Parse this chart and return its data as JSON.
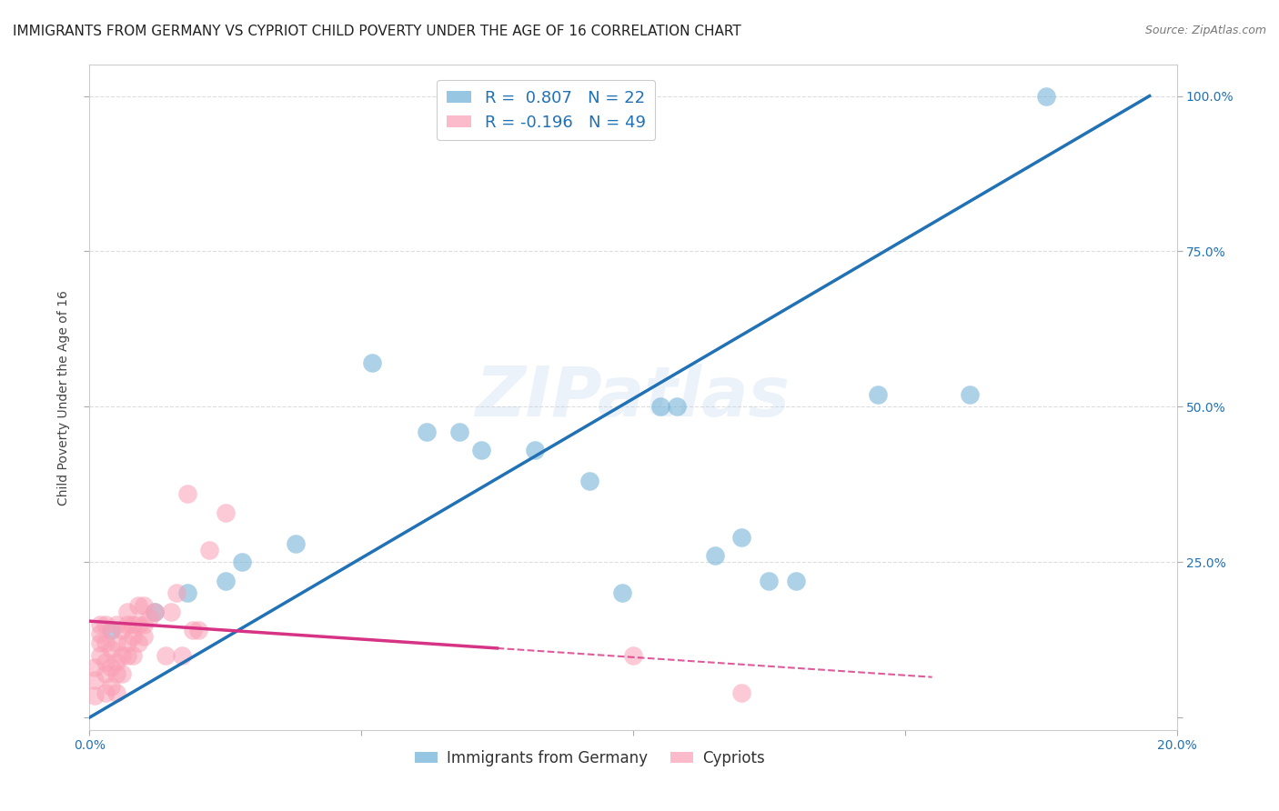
{
  "title": "IMMIGRANTS FROM GERMANY VS CYPRIOT CHILD POVERTY UNDER THE AGE OF 16 CORRELATION CHART",
  "source": "Source: ZipAtlas.com",
  "ylabel": "Child Poverty Under the Age of 16",
  "ytick_labels": [
    "",
    "25.0%",
    "50.0%",
    "75.0%",
    "100.0%"
  ],
  "ytick_vals": [
    0.0,
    0.25,
    0.5,
    0.75,
    1.0
  ],
  "xtick_vals": [
    0.0,
    0.05,
    0.1,
    0.15,
    0.2
  ],
  "xtick_labels": [
    "0.0%",
    "",
    "",
    "",
    "20.0%"
  ],
  "xlim": [
    0.0,
    0.2
  ],
  "ylim": [
    -0.02,
    1.05
  ],
  "blue_color": "#6baed6",
  "pink_color": "#fa9fb5",
  "blue_line_color": "#2171b5",
  "pink_line_color": "#d63384",
  "R_blue": 0.807,
  "N_blue": 22,
  "R_pink": -0.196,
  "N_pink": 49,
  "legend_label_blue": "Immigrants from Germany",
  "legend_label_pink": "Cypriots",
  "watermark": "ZIPatlas",
  "blue_scatter_x": [
    0.004,
    0.012,
    0.018,
    0.025,
    0.028,
    0.038,
    0.052,
    0.062,
    0.068,
    0.072,
    0.082,
    0.092,
    0.098,
    0.105,
    0.108,
    0.115,
    0.12,
    0.125,
    0.13,
    0.145,
    0.162,
    0.176
  ],
  "blue_scatter_y": [
    0.14,
    0.17,
    0.2,
    0.22,
    0.25,
    0.28,
    0.57,
    0.46,
    0.46,
    0.43,
    0.43,
    0.38,
    0.2,
    0.5,
    0.5,
    0.26,
    0.29,
    0.22,
    0.22,
    0.52,
    0.52,
    1.0
  ],
  "pink_scatter_x": [
    0.001,
    0.001,
    0.001,
    0.002,
    0.002,
    0.002,
    0.002,
    0.003,
    0.003,
    0.003,
    0.003,
    0.003,
    0.004,
    0.004,
    0.004,
    0.005,
    0.005,
    0.005,
    0.005,
    0.005,
    0.006,
    0.006,
    0.006,
    0.007,
    0.007,
    0.007,
    0.007,
    0.008,
    0.008,
    0.008,
    0.009,
    0.009,
    0.009,
    0.01,
    0.01,
    0.01,
    0.011,
    0.012,
    0.014,
    0.015,
    0.016,
    0.017,
    0.018,
    0.019,
    0.02,
    0.022,
    0.025,
    0.1,
    0.12
  ],
  "pink_scatter_y": [
    0.035,
    0.06,
    0.08,
    0.1,
    0.12,
    0.135,
    0.15,
    0.04,
    0.07,
    0.09,
    0.12,
    0.15,
    0.05,
    0.08,
    0.11,
    0.04,
    0.07,
    0.09,
    0.12,
    0.15,
    0.07,
    0.1,
    0.14,
    0.1,
    0.12,
    0.15,
    0.17,
    0.1,
    0.13,
    0.15,
    0.12,
    0.15,
    0.18,
    0.13,
    0.15,
    0.18,
    0.16,
    0.17,
    0.1,
    0.17,
    0.2,
    0.1,
    0.36,
    0.14,
    0.14,
    0.27,
    0.33,
    0.1,
    0.04
  ],
  "blue_line_x0": 0.0,
  "blue_line_y0": 0.0,
  "blue_line_x1": 0.195,
  "blue_line_y1": 1.0,
  "pink_line_x0": 0.0,
  "pink_line_y0": 0.155,
  "pink_line_x1_solid": 0.075,
  "pink_line_x1_dash": 0.155,
  "pink_line_y1": 0.065,
  "grid_color": "#dddddd",
  "bg_color": "#ffffff",
  "title_fontsize": 11,
  "axis_label_fontsize": 10,
  "tick_fontsize": 10
}
